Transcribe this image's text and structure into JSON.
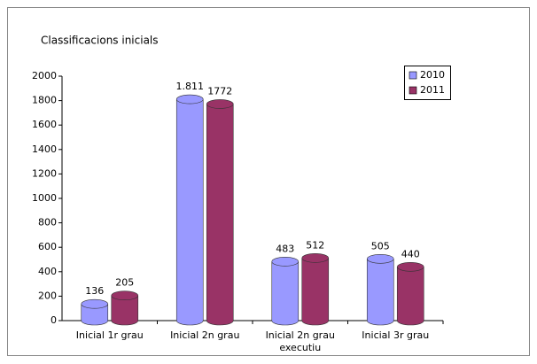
{
  "chart_data": {
    "type": "bar",
    "title": "Classificacions inicials",
    "categories": [
      "Inicial 1r grau",
      "Inicial 2n grau",
      "Inicial 2n grau executiu",
      "Inicial 3r grau"
    ],
    "series": [
      {
        "name": "2010",
        "color": "#9999ff",
        "values": [
          136,
          1811,
          483,
          505
        ],
        "value_labels": [
          "136",
          "1.811",
          "483",
          "505"
        ]
      },
      {
        "name": "2011",
        "color": "#993366",
        "values": [
          205,
          1772,
          512,
          440
        ]
      }
    ],
    "ylim": [
      0,
      2000
    ],
    "yticks": [
      0,
      200,
      400,
      600,
      800,
      1000,
      1200,
      1400,
      1600,
      1800,
      2000
    ],
    "legend": "top-right"
  }
}
